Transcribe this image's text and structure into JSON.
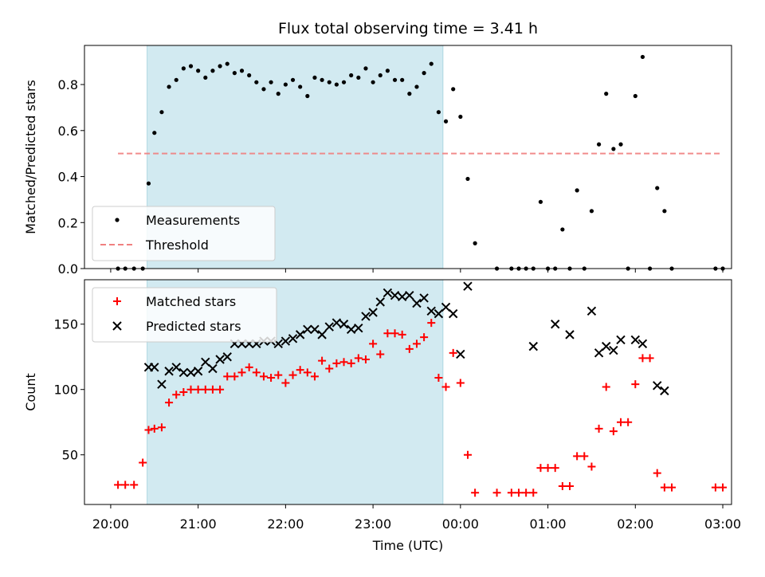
{
  "chart_data": [
    {
      "type": "scatter",
      "title": "Flux total observing time = 3.41 h",
      "xlabel": "",
      "ylabel": "Matched/Predicted stars",
      "ylim": [
        0,
        0.97
      ],
      "yticks": [
        "0.0",
        "0.2",
        "0.4",
        "0.6",
        "0.8"
      ],
      "grid": false,
      "legend_position": "lower-left",
      "observing_window": [
        "20:25",
        "23:48"
      ],
      "series": [
        {
          "name": "Measurements",
          "marker": "dot",
          "color": "#000000",
          "points": [
            [
              "20:05",
              0.0
            ],
            [
              "20:10",
              0.0
            ],
            [
              "20:16",
              0.0
            ],
            [
              "20:22",
              0.0
            ],
            [
              "20:26",
              0.37
            ],
            [
              "20:30",
              0.59
            ],
            [
              "20:35",
              0.68
            ],
            [
              "20:40",
              0.79
            ],
            [
              "20:45",
              0.82
            ],
            [
              "20:50",
              0.87
            ],
            [
              "20:55",
              0.88
            ],
            [
              "21:00",
              0.86
            ],
            [
              "21:05",
              0.83
            ],
            [
              "21:10",
              0.86
            ],
            [
              "21:15",
              0.88
            ],
            [
              "21:20",
              0.89
            ],
            [
              "21:25",
              0.85
            ],
            [
              "21:30",
              0.86
            ],
            [
              "21:35",
              0.84
            ],
            [
              "21:40",
              0.81
            ],
            [
              "21:45",
              0.78
            ],
            [
              "21:50",
              0.81
            ],
            [
              "21:55",
              0.76
            ],
            [
              "22:00",
              0.8
            ],
            [
              "22:05",
              0.82
            ],
            [
              "22:10",
              0.79
            ],
            [
              "22:15",
              0.75
            ],
            [
              "22:20",
              0.83
            ],
            [
              "22:25",
              0.82
            ],
            [
              "22:30",
              0.81
            ],
            [
              "22:35",
              0.8
            ],
            [
              "22:40",
              0.81
            ],
            [
              "22:45",
              0.84
            ],
            [
              "22:50",
              0.83
            ],
            [
              "22:55",
              0.87
            ],
            [
              "23:00",
              0.81
            ],
            [
              "23:05",
              0.84
            ],
            [
              "23:10",
              0.86
            ],
            [
              "23:15",
              0.82
            ],
            [
              "23:20",
              0.82
            ],
            [
              "23:25",
              0.76
            ],
            [
              "23:30",
              0.79
            ],
            [
              "23:35",
              0.85
            ],
            [
              "23:40",
              0.89
            ],
            [
              "23:45",
              0.68
            ],
            [
              "23:50",
              0.64
            ],
            [
              "23:55",
              0.78
            ],
            [
              "00:00",
              0.66
            ],
            [
              "00:05",
              0.39
            ],
            [
              "00:10",
              0.11
            ],
            [
              "00:25",
              0.0
            ],
            [
              "00:35",
              0.0
            ],
            [
              "00:40",
              0.0
            ],
            [
              "00:45",
              0.0
            ],
            [
              "00:50",
              0.0
            ],
            [
              "00:55",
              0.29
            ],
            [
              "01:00",
              0.0
            ],
            [
              "01:05",
              0.0
            ],
            [
              "01:10",
              0.17
            ],
            [
              "01:15",
              0.0
            ],
            [
              "01:20",
              0.34
            ],
            [
              "01:25",
              0.0
            ],
            [
              "01:30",
              0.25
            ],
            [
              "01:35",
              0.54
            ],
            [
              "01:40",
              0.76
            ],
            [
              "01:45",
              0.52
            ],
            [
              "01:50",
              0.54
            ],
            [
              "01:55",
              0.0
            ],
            [
              "02:00",
              0.75
            ],
            [
              "02:05",
              0.92
            ],
            [
              "02:10",
              0.0
            ],
            [
              "02:15",
              0.35
            ],
            [
              "02:20",
              0.25
            ],
            [
              "02:25",
              0.0
            ],
            [
              "02:55",
              0.0
            ],
            [
              "03:00",
              0.0
            ]
          ]
        },
        {
          "name": "Threshold",
          "style": "dashed",
          "color": "#f08080",
          "points": [
            [
              "20:05",
              0.5
            ],
            [
              "03:00",
              0.5
            ]
          ]
        }
      ]
    },
    {
      "type": "scatter",
      "title": "",
      "xlabel": "Time (UTC)",
      "ylabel": "Count",
      "ylim": [
        12,
        184
      ],
      "yticks": [
        "50",
        "100",
        "150"
      ],
      "xticks": [
        "20:00",
        "21:00",
        "22:00",
        "23:00",
        "00:00",
        "01:00",
        "02:00",
        "03:00"
      ],
      "grid": false,
      "legend_position": "upper-left",
      "observing_window": [
        "20:25",
        "23:48"
      ],
      "series": [
        {
          "name": "Matched stars",
          "marker": "plus",
          "color": "#ff0000",
          "points": [
            [
              "20:05",
              27
            ],
            [
              "20:10",
              27
            ],
            [
              "20:16",
              27
            ],
            [
              "20:22",
              44
            ],
            [
              "20:26",
              69
            ],
            [
              "20:30",
              70
            ],
            [
              "20:35",
              71
            ],
            [
              "20:40",
              90
            ],
            [
              "20:45",
              96
            ],
            [
              "20:50",
              98
            ],
            [
              "20:55",
              100
            ],
            [
              "21:00",
              100
            ],
            [
              "21:05",
              100
            ],
            [
              "21:10",
              100
            ],
            [
              "21:15",
              100
            ],
            [
              "21:20",
              110
            ],
            [
              "21:25",
              110
            ],
            [
              "21:30",
              113
            ],
            [
              "21:35",
              117
            ],
            [
              "21:40",
              113
            ],
            [
              "21:45",
              110
            ],
            [
              "21:50",
              109
            ],
            [
              "21:55",
              111
            ],
            [
              "22:00",
              105
            ],
            [
              "22:05",
              111
            ],
            [
              "22:10",
              115
            ],
            [
              "22:15",
              113
            ],
            [
              "22:20",
              110
            ],
            [
              "22:25",
              122
            ],
            [
              "22:30",
              116
            ],
            [
              "22:35",
              120
            ],
            [
              "22:40",
              121
            ],
            [
              "22:45",
              120
            ],
            [
              "22:50",
              124
            ],
            [
              "22:55",
              123
            ],
            [
              "23:00",
              135
            ],
            [
              "23:05",
              127
            ],
            [
              "23:10",
              143
            ],
            [
              "23:15",
              143
            ],
            [
              "23:20",
              142
            ],
            [
              "23:25",
              131
            ],
            [
              "23:30",
              135
            ],
            [
              "23:35",
              140
            ],
            [
              "23:40",
              151
            ],
            [
              "23:45",
              109
            ],
            [
              "23:50",
              102
            ],
            [
              "23:55",
              128
            ],
            [
              "00:00",
              105
            ],
            [
              "00:05",
              50
            ],
            [
              "00:10",
              21
            ],
            [
              "00:25",
              21
            ],
            [
              "00:35",
              21
            ],
            [
              "00:40",
              21
            ],
            [
              "00:45",
              21
            ],
            [
              "00:50",
              21
            ],
            [
              "00:55",
              40
            ],
            [
              "01:00",
              40
            ],
            [
              "01:05",
              40
            ],
            [
              "01:10",
              26
            ],
            [
              "01:15",
              26
            ],
            [
              "01:20",
              49
            ],
            [
              "01:25",
              49
            ],
            [
              "01:30",
              41
            ],
            [
              "01:35",
              70
            ],
            [
              "01:40",
              102
            ],
            [
              "01:45",
              68
            ],
            [
              "01:50",
              75
            ],
            [
              "01:55",
              75
            ],
            [
              "02:00",
              104
            ],
            [
              "02:05",
              124
            ],
            [
              "02:10",
              124
            ],
            [
              "02:15",
              36
            ],
            [
              "02:20",
              25
            ],
            [
              "02:25",
              25
            ],
            [
              "02:55",
              25
            ],
            [
              "03:00",
              25
            ]
          ]
        },
        {
          "name": "Predicted stars",
          "marker": "x",
          "color": "#000000",
          "points": [
            [
              "20:26",
              117
            ],
            [
              "20:30",
              117
            ],
            [
              "20:35",
              104
            ],
            [
              "20:40",
              114
            ],
            [
              "20:45",
              117
            ],
            [
              "20:50",
              113
            ],
            [
              "20:55",
              113
            ],
            [
              "21:00",
              114
            ],
            [
              "21:05",
              121
            ],
            [
              "21:10",
              116
            ],
            [
              "21:15",
              123
            ],
            [
              "21:20",
              125
            ],
            [
              "21:25",
              135
            ],
            [
              "21:30",
              135
            ],
            [
              "21:35",
              135
            ],
            [
              "21:40",
              135
            ],
            [
              "21:45",
              137
            ],
            [
              "21:50",
              137
            ],
            [
              "21:55",
              135
            ],
            [
              "22:00",
              137
            ],
            [
              "22:05",
              139
            ],
            [
              "22:10",
              142
            ],
            [
              "22:15",
              146
            ],
            [
              "22:20",
              146
            ],
            [
              "22:25",
              142
            ],
            [
              "22:30",
              148
            ],
            [
              "22:35",
              151
            ],
            [
              "22:40",
              150
            ],
            [
              "22:45",
              146
            ],
            [
              "22:50",
              147
            ],
            [
              "22:55",
              156
            ],
            [
              "23:00",
              159
            ],
            [
              "23:05",
              167
            ],
            [
              "23:10",
              174
            ],
            [
              "23:15",
              172
            ],
            [
              "23:20",
              171
            ],
            [
              "23:25",
              172
            ],
            [
              "23:30",
              166
            ],
            [
              "23:35",
              170
            ],
            [
              "23:40",
              160
            ],
            [
              "23:45",
              158
            ],
            [
              "23:50",
              163
            ],
            [
              "23:55",
              158
            ],
            [
              "00:00",
              127
            ],
            [
              "00:05",
              179
            ],
            [
              "00:50",
              133
            ],
            [
              "01:05",
              150
            ],
            [
              "01:15",
              142
            ],
            [
              "01:30",
              160
            ],
            [
              "01:35",
              128
            ],
            [
              "01:40",
              133
            ],
            [
              "01:45",
              130
            ],
            [
              "01:50",
              138
            ],
            [
              "02:00",
              138
            ],
            [
              "02:05",
              135
            ],
            [
              "02:15",
              103
            ],
            [
              "02:20",
              99
            ]
          ]
        }
      ]
    }
  ]
}
